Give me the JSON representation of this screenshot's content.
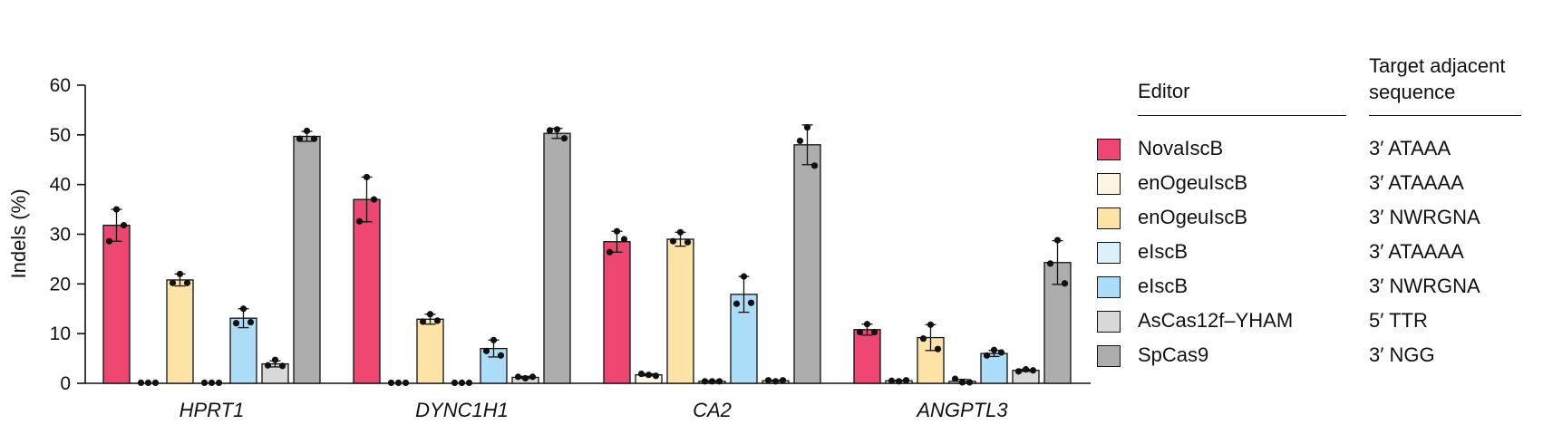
{
  "chart_data": {
    "type": "bar",
    "ylabel": "Indels (%)",
    "ylim": [
      0,
      60
    ],
    "yticks": [
      0,
      10,
      20,
      30,
      40,
      50,
      60
    ],
    "categories": [
      "HPRT1",
      "DYNC1H1",
      "CA2",
      "ANGPTL3"
    ],
    "series": [
      {
        "name": "NovaIscB",
        "color": "#ee4571",
        "values": [
          31.8,
          37.0,
          28.5,
          10.8
        ],
        "points": [
          [
            35.0,
            28.6,
            31.8
          ],
          [
            41.5,
            32.6,
            37.0
          ],
          [
            30.6,
            26.4,
            29.0
          ],
          [
            11.9,
            10.3,
            10.3
          ]
        ],
        "err": [
          3.2,
          4.5,
          2.1,
          1.1
        ]
      },
      {
        "name": "enOgeuIscB",
        "color": "#fdf4e3",
        "values": [
          0.1,
          0.1,
          1.7,
          0.5
        ],
        "points": [
          [
            0.1,
            0.1,
            0.1
          ],
          [
            0.1,
            0.1,
            0.1
          ],
          [
            1.7,
            1.9,
            1.5
          ],
          [
            0.4,
            0.5,
            0.6
          ]
        ],
        "err": [
          0,
          0,
          0.2,
          0.1
        ]
      },
      {
        "name": "enOgeuIscB",
        "color": "#fde3a5",
        "values": [
          20.8,
          12.9,
          29.0,
          9.2
        ],
        "points": [
          [
            22.0,
            20.2,
            20.2
          ],
          [
            13.9,
            12.4,
            12.6
          ],
          [
            30.4,
            28.6,
            28.4
          ],
          [
            11.8,
            9.0,
            6.9
          ]
        ],
        "err": [
          1.2,
          1.0,
          1.4,
          2.6
        ]
      },
      {
        "name": "eIscB",
        "color": "#dcf0fb",
        "values": [
          0.1,
          0.1,
          0.4,
          0.4
        ],
        "points": [
          [
            0.1,
            0.1,
            0.1
          ],
          [
            0.1,
            0.1,
            0.1
          ],
          [
            0.4,
            0.4,
            0.4
          ],
          [
            0.2,
            0.9,
            0.2
          ]
        ],
        "err": [
          0,
          0,
          0.1,
          0.4
        ]
      },
      {
        "name": "eIscB",
        "color": "#abdcf8",
        "values": [
          13.1,
          7.0,
          17.9,
          6.0
        ],
        "points": [
          [
            15.0,
            12.1,
            12.3
          ],
          [
            8.7,
            6.5,
            5.6
          ],
          [
            21.5,
            16.0,
            16.2
          ],
          [
            6.7,
            5.6,
            6.2
          ]
        ],
        "err": [
          1.9,
          1.7,
          3.6,
          0.6
        ]
      },
      {
        "name": "AsCas12f-YHAM",
        "color": "#d8d8d8",
        "values": [
          3.9,
          1.2,
          0.5,
          2.6
        ],
        "points": [
          [
            4.7,
            3.6,
            3.5
          ],
          [
            1.0,
            1.3,
            1.3
          ],
          [
            0.4,
            0.6,
            0.6
          ],
          [
            2.8,
            2.4,
            2.6
          ]
        ],
        "err": [
          0.6,
          0.2,
          0.1,
          0.2
        ]
      },
      {
        "name": "SpCas9",
        "color": "#adadad",
        "values": [
          49.7,
          50.3,
          48.0,
          24.3
        ],
        "points": [
          [
            50.8,
            49.2,
            49.2
          ],
          [
            51.1,
            50.9,
            49.3
          ],
          [
            51.5,
            48.8,
            43.8
          ],
          [
            28.8,
            24.1,
            20.1
          ]
        ],
        "err": [
          1.0,
          1.0,
          4.0,
          4.4
        ]
      }
    ]
  },
  "legend": {
    "heading_editor": "Editor",
    "heading_target": "Target adjacent\nsequence",
    "rows": [
      {
        "name": "NovaIscB",
        "target": "3′ ATAAA",
        "color": "#ee4571"
      },
      {
        "name": "enOgeuIscB",
        "target": "3′ ATAAAA",
        "color": "#fdf4e3"
      },
      {
        "name": "enOgeuIscB",
        "target": "3′ NWRGNA",
        "color": "#fde3a5"
      },
      {
        "name": "eIscB",
        "target": "3′ ATAAAA",
        "color": "#dcf0fb"
      },
      {
        "name": "eIscB",
        "target": "3′ NWRGNA",
        "color": "#abdcf8"
      },
      {
        "name": "AsCas12f–YHAM",
        "target": "5′ TTR",
        "color": "#d8d8d8"
      },
      {
        "name": "SpCas9",
        "target": "3′ NGG",
        "color": "#adadad"
      }
    ]
  }
}
